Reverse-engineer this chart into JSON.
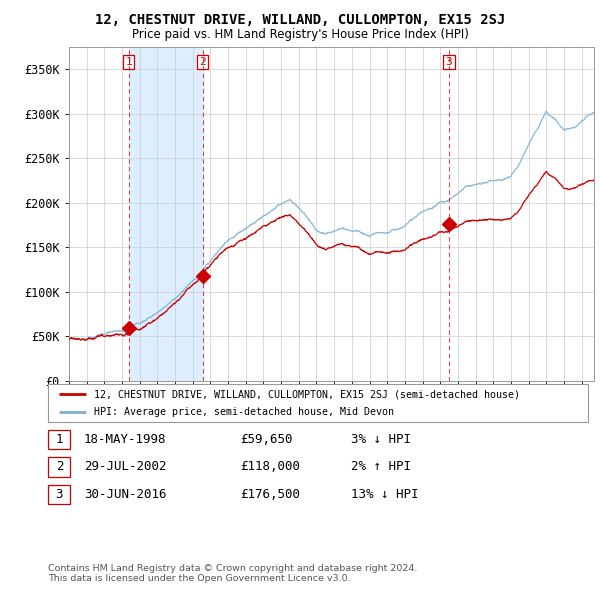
{
  "title": "12, CHESTNUT DRIVE, WILLAND, CULLOMPTON, EX15 2SJ",
  "subtitle": "Price paid vs. HM Land Registry's House Price Index (HPI)",
  "background_color": "#ffffff",
  "grid_color": "#cccccc",
  "hpi_color": "#7ab0d4",
  "price_color": "#cc0000",
  "shade_color": "#ddeeff",
  "ylim": [
    0,
    375000
  ],
  "yticks": [
    0,
    50000,
    100000,
    150000,
    200000,
    250000,
    300000,
    350000
  ],
  "ytick_labels": [
    "£0",
    "£50K",
    "£100K",
    "£150K",
    "£200K",
    "£250K",
    "£300K",
    "£350K"
  ],
  "legend_entry1": "12, CHESTNUT DRIVE, WILLAND, CULLOMPTON, EX15 2SJ (semi-detached house)",
  "legend_entry2": "HPI: Average price, semi-detached house, Mid Devon",
  "sale1": {
    "label": "1",
    "price": 59650,
    "x": 1998.38
  },
  "sale2": {
    "label": "2",
    "price": 118000,
    "x": 2002.57
  },
  "sale3": {
    "label": "3",
    "price": 176500,
    "x": 2016.5
  },
  "footnote": "Contains HM Land Registry data © Crown copyright and database right 2024.\nThis data is licensed under the Open Government Licence v3.0.",
  "table_rows": [
    {
      "num": "1",
      "date": "18-MAY-1998",
      "price": "£59,650",
      "rel": "3% ↓ HPI"
    },
    {
      "num": "2",
      "date": "29-JUL-2002",
      "price": "£118,000",
      "rel": "2% ↑ HPI"
    },
    {
      "num": "3",
      "date": "30-JUN-2016",
      "price": "£176,500",
      "rel": "13% ↓ HPI"
    }
  ],
  "hpi_anchors_x": [
    1995,
    1996,
    1997,
    1998,
    1999,
    2000,
    2001,
    2002,
    2003,
    2004,
    2005,
    2006,
    2007,
    2007.5,
    2008,
    2008.5,
    2009,
    2009.5,
    2010,
    2010.5,
    2011,
    2011.5,
    2012,
    2012.5,
    2013,
    2013.5,
    2014,
    2014.5,
    2015,
    2015.5,
    2016,
    2016.5,
    2017,
    2017.5,
    2018,
    2018.5,
    2019,
    2019.5,
    2020,
    2020.5,
    2021,
    2021.5,
    2022,
    2022.5,
    2023,
    2023.5,
    2024,
    2024.5
  ],
  "hpi_anchors_y": [
    47000,
    50000,
    54000,
    58000,
    65000,
    76000,
    90000,
    107000,
    128000,
    148000,
    162000,
    178000,
    192000,
    196000,
    188000,
    178000,
    165000,
    162000,
    165000,
    168000,
    167000,
    165000,
    163000,
    165000,
    168000,
    172000,
    178000,
    185000,
    192000,
    198000,
    204000,
    208000,
    215000,
    220000,
    222000,
    224000,
    226000,
    228000,
    232000,
    245000,
    268000,
    285000,
    305000,
    298000,
    285000,
    288000,
    295000,
    302000
  ],
  "price_anchors_x": [
    1995,
    1998.38,
    2002.57,
    2016.5,
    2024.5
  ],
  "price_scale": [
    1.0,
    1.0,
    1.02,
    0.87,
    0.87
  ]
}
